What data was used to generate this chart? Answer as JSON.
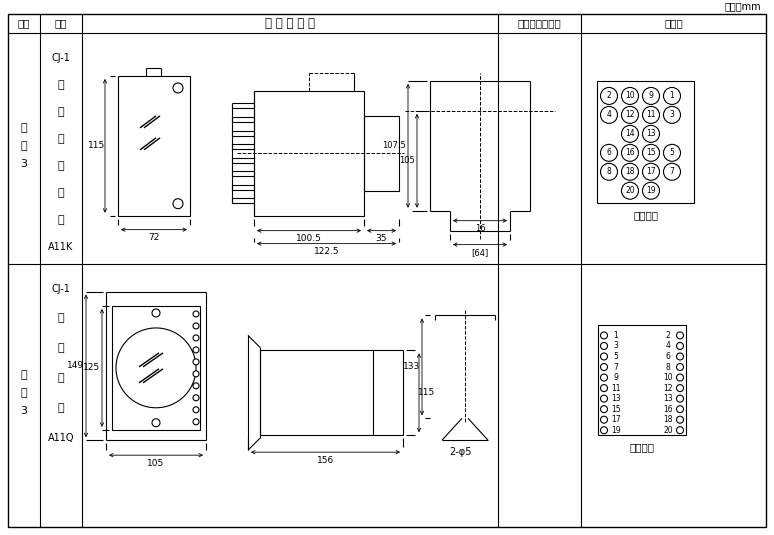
{
  "unit_text": "单位：mm",
  "col_headers": [
    "图号",
    "结构",
    "外 形 尺 寸 图",
    "安装开孔尺寸图",
    "端子图"
  ],
  "row1_label": [
    "附",
    "图",
    "3"
  ],
  "row1_struct": [
    "CJ-1",
    "嵌",
    "入",
    "式",
    "后",
    "接",
    "线",
    "A11K"
  ],
  "row2_label": [
    "附",
    "图",
    "3"
  ],
  "row2_struct": [
    "CJ-1",
    "板",
    "前",
    "接",
    "线",
    "A11Q"
  ],
  "back_view": "（背视）",
  "front_view": "（前视）",
  "bg_color": "#ffffff",
  "lc": "#000000"
}
